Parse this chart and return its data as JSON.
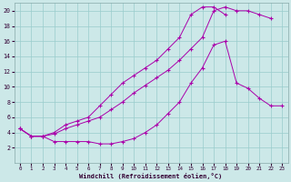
{
  "xlabel": "Windchill (Refroidissement éolien,°C)",
  "xlim": [
    -0.5,
    23.5
  ],
  "ylim": [
    0,
    21
  ],
  "xticks": [
    0,
    1,
    2,
    3,
    4,
    5,
    6,
    7,
    8,
    9,
    10,
    11,
    12,
    13,
    14,
    15,
    16,
    17,
    18,
    19,
    20,
    21,
    22,
    23
  ],
  "yticks": [
    2,
    4,
    6,
    8,
    10,
    12,
    14,
    16,
    18,
    20
  ],
  "bg_color": "#cce8e8",
  "line_color": "#aa00aa",
  "grid_color": "#99cccc",
  "line1_y": [
    4.5,
    3.5,
    3.5,
    2.8,
    2.8,
    2.8,
    2.8,
    2.5,
    2.5,
    2.8,
    3.2,
    4.0,
    5.0,
    6.5,
    8.0,
    10.5,
    12.5,
    15.5,
    16.0,
    10.5,
    9.8,
    8.5,
    7.5,
    7.5
  ],
  "line2_x": [
    0,
    1,
    2,
    3,
    4,
    5,
    6,
    7,
    8,
    9,
    10,
    11,
    12,
    13,
    14,
    15,
    16,
    17,
    18,
    19,
    20,
    21,
    22
  ],
  "line2_y": [
    4.5,
    3.5,
    3.5,
    3.8,
    4.5,
    5.0,
    5.5,
    6.0,
    7.0,
    8.0,
    9.2,
    10.2,
    11.2,
    12.2,
    13.5,
    15.0,
    16.5,
    20.0,
    20.5,
    20.0,
    20.0,
    19.5,
    19.0
  ],
  "line3_x": [
    0,
    1,
    2,
    3,
    4,
    5,
    6,
    7,
    8,
    9,
    10,
    11,
    12,
    13,
    14,
    15,
    16,
    17,
    18
  ],
  "line3_y": [
    4.5,
    3.5,
    3.5,
    4.0,
    5.0,
    5.5,
    6.0,
    7.5,
    9.0,
    10.5,
    11.5,
    12.5,
    13.5,
    15.0,
    16.5,
    19.5,
    20.5,
    20.5,
    19.5
  ]
}
